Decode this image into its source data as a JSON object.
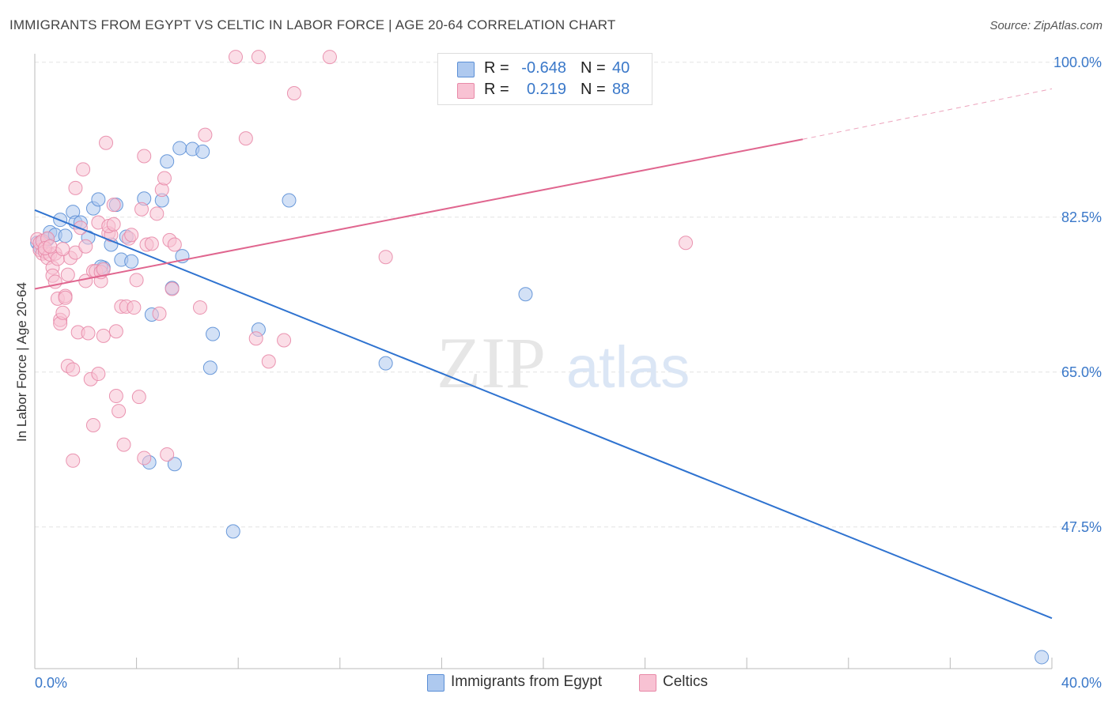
{
  "title": "IMMIGRANTS FROM EGYPT VS CELTIC IN LABOR FORCE | AGE 20-64 CORRELATION CHART",
  "source": "Source: ZipAtlas.com",
  "watermark": {
    "zip": "ZIP",
    "atlas": "atlas"
  },
  "legend": {
    "rows": [
      {
        "r_label": "R =",
        "r_value": "-0.648",
        "n_label": "N =",
        "n_value": "40",
        "color": "#aec9ef",
        "border": "#5b8fd6"
      },
      {
        "r_label": "R =",
        "r_value": "0.219",
        "n_label": "N =",
        "n_value": "88",
        "color": "#f8c2d3",
        "border": "#e889a8"
      }
    ]
  },
  "bottom_legend": [
    {
      "label": "Immigrants from Egypt",
      "color": "#aec9ef",
      "border": "#5b8fd6"
    },
    {
      "label": "Celtics",
      "color": "#f8c2d3",
      "border": "#e889a8"
    }
  ],
  "chart_data": {
    "type": "scatter",
    "title": "IMMIGRANTS FROM EGYPT VS CELTIC IN LABOR FORCE | AGE 20-64 CORRELATION CHART",
    "xlabel": "",
    "ylabel": "In Labor Force | Age 20-64",
    "xlim": [
      0,
      40
    ],
    "ylim": [
      31.5,
      101.5
    ],
    "x_tick_labels": [
      "0.0%",
      "40.0%"
    ],
    "y_ticks": [
      100.0,
      82.5,
      65.0,
      47.5
    ],
    "y_tick_labels": [
      "100.0%",
      "82.5%",
      "65.0%",
      "47.5%"
    ],
    "grid": true,
    "series": [
      {
        "name": "Immigrants from Egypt",
        "color": "#5b8fd6",
        "fill": "#aec9ef",
        "trend": {
          "x": [
            0,
            40
          ],
          "y": [
            83.3,
            37.2
          ],
          "color": "#2f73d0"
        },
        "points": [
          [
            0.1,
            79.6
          ],
          [
            0.3,
            79.6
          ],
          [
            0.5,
            80.0
          ],
          [
            0.6,
            80.8
          ],
          [
            0.8,
            80.5
          ],
          [
            1.0,
            82.2
          ],
          [
            1.2,
            80.4
          ],
          [
            1.5,
            83.1
          ],
          [
            1.6,
            81.9
          ],
          [
            1.8,
            81.9
          ],
          [
            2.1,
            80.2
          ],
          [
            2.3,
            83.5
          ],
          [
            2.5,
            84.5
          ],
          [
            2.7,
            76.8
          ],
          [
            3.0,
            79.4
          ],
          [
            3.2,
            83.9
          ],
          [
            3.4,
            77.7
          ],
          [
            3.6,
            80.3
          ],
          [
            3.8,
            77.5
          ],
          [
            4.3,
            84.6
          ],
          [
            4.5,
            54.8
          ],
          [
            4.6,
            71.5
          ],
          [
            5.0,
            84.4
          ],
          [
            5.2,
            88.8
          ],
          [
            5.4,
            74.5
          ],
          [
            5.5,
            54.6
          ],
          [
            5.7,
            90.3
          ],
          [
            5.8,
            78.1
          ],
          [
            6.2,
            90.2
          ],
          [
            6.6,
            89.9
          ],
          [
            6.9,
            65.5
          ],
          [
            7.0,
            69.3
          ],
          [
            7.8,
            47.0
          ],
          [
            8.8,
            69.8
          ],
          [
            10.0,
            84.4
          ],
          [
            13.8,
            66.0
          ],
          [
            19.3,
            73.8
          ],
          [
            39.6,
            32.8
          ],
          [
            0.2,
            79.1
          ],
          [
            2.6,
            76.9
          ]
        ]
      },
      {
        "name": "Celtics",
        "color": "#e889a8",
        "fill": "#f8c2d3",
        "trend": {
          "x": [
            0,
            30.2
          ],
          "y": [
            74.4,
            91.3
          ],
          "dashed_to": [
            40,
            97.0
          ],
          "color": "#e0668f"
        },
        "points": [
          [
            0.1,
            80.0
          ],
          [
            0.2,
            78.8
          ],
          [
            0.2,
            79.6
          ],
          [
            0.3,
            78.4
          ],
          [
            0.3,
            79.8
          ],
          [
            0.4,
            78.6
          ],
          [
            0.5,
            77.9
          ],
          [
            0.5,
            80.1
          ],
          [
            0.6,
            78.3
          ],
          [
            0.7,
            76.8
          ],
          [
            0.7,
            75.9
          ],
          [
            0.8,
            75.2
          ],
          [
            0.8,
            78.4
          ],
          [
            0.9,
            77.8
          ],
          [
            0.9,
            73.3
          ],
          [
            1.0,
            70.9
          ],
          [
            1.0,
            70.5
          ],
          [
            1.1,
            71.7
          ],
          [
            1.2,
            73.6
          ],
          [
            1.2,
            73.4
          ],
          [
            1.3,
            76.0
          ],
          [
            1.3,
            65.7
          ],
          [
            1.4,
            77.9
          ],
          [
            1.5,
            65.3
          ],
          [
            1.5,
            55.0
          ],
          [
            1.6,
            85.8
          ],
          [
            1.6,
            78.5
          ],
          [
            1.7,
            69.5
          ],
          [
            1.8,
            81.3
          ],
          [
            1.9,
            87.9
          ],
          [
            2.0,
            79.2
          ],
          [
            2.0,
            75.3
          ],
          [
            2.1,
            69.4
          ],
          [
            2.2,
            64.2
          ],
          [
            2.3,
            59.0
          ],
          [
            2.3,
            76.4
          ],
          [
            2.4,
            76.4
          ],
          [
            2.5,
            64.8
          ],
          [
            2.5,
            81.9
          ],
          [
            2.6,
            75.3
          ],
          [
            2.6,
            76.3
          ],
          [
            2.7,
            69.1
          ],
          [
            2.8,
            90.9
          ],
          [
            2.9,
            80.7
          ],
          [
            3.0,
            80.5
          ],
          [
            3.1,
            83.9
          ],
          [
            3.2,
            69.6
          ],
          [
            3.2,
            62.3
          ],
          [
            3.3,
            60.6
          ],
          [
            3.4,
            72.4
          ],
          [
            3.5,
            56.8
          ],
          [
            3.6,
            72.4
          ],
          [
            3.7,
            80.1
          ],
          [
            3.8,
            80.5
          ],
          [
            3.9,
            72.3
          ],
          [
            4.0,
            75.4
          ],
          [
            4.1,
            62.2
          ],
          [
            4.2,
            83.4
          ],
          [
            4.3,
            89.4
          ],
          [
            4.3,
            55.3
          ],
          [
            4.4,
            79.4
          ],
          [
            4.6,
            79.5
          ],
          [
            4.8,
            82.9
          ],
          [
            4.9,
            71.6
          ],
          [
            5.0,
            85.6
          ],
          [
            5.1,
            86.9
          ],
          [
            5.2,
            55.7
          ],
          [
            5.3,
            79.9
          ],
          [
            5.4,
            74.4
          ],
          [
            5.5,
            79.4
          ],
          [
            6.5,
            72.3
          ],
          [
            6.7,
            91.8
          ],
          [
            7.9,
            100.6
          ],
          [
            8.3,
            91.4
          ],
          [
            8.7,
            68.8
          ],
          [
            8.8,
            100.6
          ],
          [
            9.2,
            66.2
          ],
          [
            9.8,
            68.6
          ],
          [
            10.2,
            96.5
          ],
          [
            11.6,
            100.6
          ],
          [
            13.8,
            78.0
          ],
          [
            25.6,
            79.6
          ],
          [
            0.4,
            79.0
          ],
          [
            0.6,
            79.2
          ],
          [
            1.1,
            78.9
          ],
          [
            2.7,
            76.6
          ],
          [
            2.9,
            81.5
          ],
          [
            3.1,
            81.7
          ]
        ]
      }
    ]
  }
}
